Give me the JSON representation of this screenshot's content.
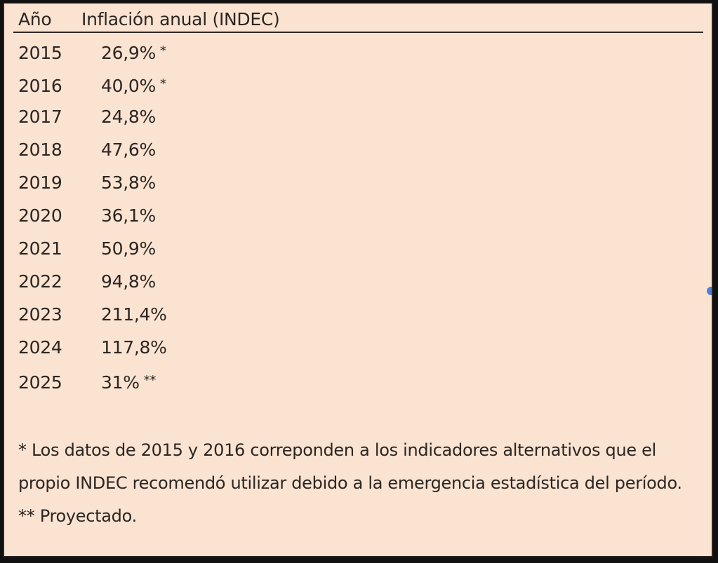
{
  "table": {
    "headers": {
      "year": "Año",
      "value": "Inflación anual (INDEC)"
    },
    "rows": [
      {
        "year": "2015",
        "value": "26,9%",
        "mark": "*"
      },
      {
        "year": "2016",
        "value": "40,0%",
        "mark": "*"
      },
      {
        "year": "2017",
        "value": "24,8%",
        "mark": ""
      },
      {
        "year": "2018",
        "value": "47,6%",
        "mark": ""
      },
      {
        "year": "2019",
        "value": "53,8%",
        "mark": ""
      },
      {
        "year": "2020",
        "value": "36,1%",
        "mark": ""
      },
      {
        "year": "2021",
        "value": "50,9%",
        "mark": ""
      },
      {
        "year": "2022",
        "value": "94,8%",
        "mark": ""
      },
      {
        "year": "2023",
        "value": "211,4%",
        "mark": ""
      },
      {
        "year": "2024",
        "value": "117,8%",
        "mark": ""
      },
      {
        "year": "2025",
        "value": "31%",
        "mark": "**"
      }
    ]
  },
  "notes": {
    "note1": "* Los datos de 2015 y 2016 correponden a los indicadores alternativos que el propio INDEC recomendó utilizar debido a la emergencia estadística del período.",
    "note2": "** Proyectado."
  },
  "colors": {
    "background": "#fbe3d2",
    "text": "#2b2622",
    "border": "#2a2420",
    "handle": "#4f7fd6"
  }
}
